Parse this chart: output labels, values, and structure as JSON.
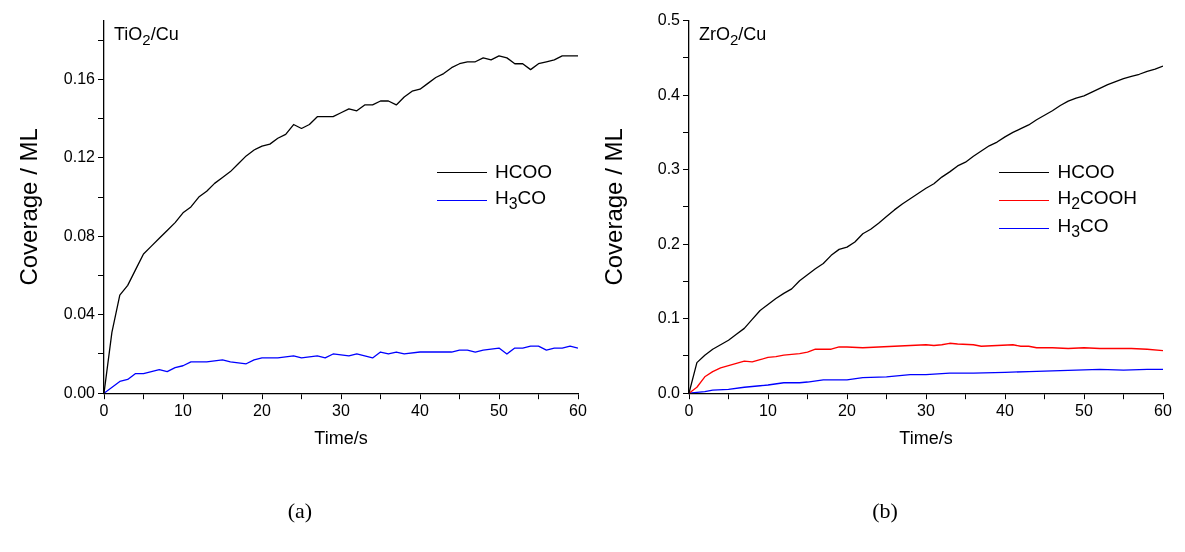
{
  "chart_data": [
    {
      "type": "line",
      "title": "TiO$_{2}$/Cu",
      "xlabel": "Time/s",
      "ylabel": "Coverage / ML",
      "annotations": [
        "(a)"
      ],
      "legend": "right",
      "grid": false,
      "xlim": [
        0,
        60
      ],
      "ylim": [
        0,
        0.19
      ],
      "xticks": [
        0,
        {
          "value": 5,
          "label": null
        },
        10,
        {
          "value": 15,
          "label": null
        },
        20,
        {
          "value": 25,
          "label": null
        },
        30,
        {
          "value": 35,
          "label": null
        },
        40,
        {
          "value": 45,
          "label": null
        },
        50,
        {
          "value": 55,
          "label": null
        },
        60
      ],
      "yticks": [
        {
          "value": 0,
          "label": "0.00"
        },
        {
          "value": 0.02,
          "label": null
        },
        0.04,
        {
          "value": 0.06,
          "label": null
        },
        0.08,
        {
          "value": 0.1,
          "label": null
        },
        0.12,
        {
          "value": 0.14,
          "label": null
        },
        0.16,
        {
          "value": 0.18,
          "label": null
        }
      ],
      "series": [
        {
          "name": "HCOO",
          "color": "#000000",
          "x": [
            0,
            1,
            2,
            3,
            4,
            5,
            6,
            7,
            8,
            9,
            10,
            11,
            12,
            13,
            14,
            15,
            16,
            17,
            18,
            19,
            20,
            21,
            22,
            23,
            24,
            25,
            26,
            27,
            28,
            29,
            30,
            31,
            32,
            33,
            34,
            35,
            36,
            37,
            38,
            39,
            40,
            41,
            42,
            43,
            44,
            45,
            46,
            47,
            48,
            49,
            50,
            51,
            52,
            53,
            54,
            55,
            56,
            57,
            58,
            59,
            60
          ],
          "values": [
            0,
            0.031,
            0.05,
            0.055,
            0.063,
            0.071,
            0.075,
            0.079,
            0.083,
            0.087,
            0.092,
            0.095,
            0.1,
            0.103,
            0.107,
            0.11,
            0.113,
            0.117,
            0.121,
            0.124,
            0.126,
            0.127,
            0.13,
            0.132,
            0.137,
            0.135,
            0.137,
            0.141,
            0.141,
            0.141,
            0.143,
            0.145,
            0.144,
            0.147,
            0.147,
            0.149,
            0.149,
            0.147,
            0.151,
            0.154,
            0.155,
            0.158,
            0.161,
            0.163,
            0.166,
            0.168,
            0.169,
            0.169,
            0.171,
            0.17,
            0.172,
            0.171,
            0.168,
            0.168,
            0.165,
            0.168,
            0.169,
            0.17,
            0.172,
            0.172,
            0.172
          ]
        },
        {
          "name": "H$_{3}$CO",
          "color": "#0000ff",
          "x": [
            0,
            2,
            3,
            4,
            5,
            6,
            7,
            8,
            9,
            10,
            11,
            12,
            13,
            15,
            16,
            18,
            19,
            20,
            22,
            24,
            25,
            27,
            28,
            29,
            31,
            32,
            34,
            35,
            36,
            37,
            38,
            40,
            42,
            44,
            45,
            46,
            47,
            48,
            50,
            51,
            52,
            53,
            54,
            55,
            56,
            57,
            58,
            59,
            60
          ],
          "values": [
            0,
            0.006,
            0.007,
            0.01,
            0.01,
            0.011,
            0.012,
            0.011,
            0.013,
            0.014,
            0.016,
            0.016,
            0.016,
            0.017,
            0.016,
            0.015,
            0.017,
            0.018,
            0.018,
            0.019,
            0.018,
            0.019,
            0.018,
            0.02,
            0.019,
            0.02,
            0.018,
            0.021,
            0.02,
            0.021,
            0.02,
            0.021,
            0.021,
            0.021,
            0.022,
            0.022,
            0.021,
            0.022,
            0.023,
            0.02,
            0.023,
            0.023,
            0.024,
            0.024,
            0.022,
            0.023,
            0.023,
            0.024,
            0.023
          ]
        }
      ]
    },
    {
      "type": "line",
      "title": "ZrO$_{2}$/Cu",
      "xlabel": "Time/s",
      "ylabel": "Coverage / ML",
      "annotations": [
        "(b)"
      ],
      "legend": "right",
      "grid": false,
      "xlim": [
        0,
        60
      ],
      "ylim": [
        0,
        0.5
      ],
      "xticks": [
        0,
        {
          "value": 5,
          "label": null
        },
        10,
        {
          "value": 15,
          "label": null
        },
        20,
        {
          "value": 25,
          "label": null
        },
        30,
        {
          "value": 35,
          "label": null
        },
        40,
        {
          "value": 45,
          "label": null
        },
        50,
        {
          "value": 55,
          "label": null
        },
        60
      ],
      "yticks": [
        {
          "value": 0,
          "label": "0.0"
        },
        {
          "value": 0.05,
          "label": null
        },
        0.1,
        {
          "value": 0.15,
          "label": null
        },
        0.2,
        {
          "value": 0.25,
          "label": null
        },
        0.3,
        {
          "value": 0.35,
          "label": null
        },
        0.4,
        {
          "value": 0.45,
          "label": null
        },
        0.5
      ],
      "series": [
        {
          "name": "HCOO",
          "color": "#000000",
          "x": [
            0,
            1,
            2,
            3,
            4,
            5,
            6,
            7,
            8,
            9,
            10,
            11,
            12,
            13,
            14,
            15,
            16,
            17,
            18,
            19,
            20,
            21,
            22,
            23,
            24,
            25,
            26,
            27,
            28,
            29,
            30,
            31,
            32,
            33,
            34,
            35,
            36,
            37,
            38,
            39,
            40,
            41,
            42,
            43,
            44,
            45,
            46,
            47,
            48,
            49,
            50,
            51,
            52,
            53,
            54,
            55,
            56,
            57,
            58,
            59,
            60
          ],
          "values": [
            0,
            0.041,
            0.051,
            0.059,
            0.065,
            0.071,
            0.079,
            0.087,
            0.099,
            0.111,
            0.119,
            0.127,
            0.134,
            0.14,
            0.151,
            0.159,
            0.167,
            0.174,
            0.185,
            0.193,
            0.196,
            0.203,
            0.214,
            0.22,
            0.228,
            0.237,
            0.246,
            0.254,
            0.261,
            0.268,
            0.275,
            0.281,
            0.29,
            0.297,
            0.305,
            0.31,
            0.318,
            0.325,
            0.332,
            0.337,
            0.344,
            0.35,
            0.355,
            0.36,
            0.367,
            0.373,
            0.379,
            0.386,
            0.392,
            0.396,
            0.399,
            0.404,
            0.409,
            0.414,
            0.418,
            0.422,
            0.425,
            0.428,
            0.432,
            0.435,
            0.439
          ]
        },
        {
          "name": "H$_{2}$COOH",
          "color": "#ff0000",
          "x": [
            0,
            1,
            2,
            3,
            4,
            5,
            6,
            7,
            8,
            9,
            10,
            11,
            12,
            13,
            14,
            15,
            16,
            17,
            18,
            19,
            20,
            22,
            24,
            26,
            28,
            30,
            31,
            32,
            33,
            34,
            36,
            37,
            39,
            41,
            42,
            43,
            44,
            46,
            48,
            50,
            52,
            54,
            56,
            58,
            60
          ],
          "values": [
            0,
            0.008,
            0.022,
            0.029,
            0.034,
            0.037,
            0.04,
            0.043,
            0.042,
            0.045,
            0.048,
            0.049,
            0.051,
            0.052,
            0.053,
            0.055,
            0.059,
            0.059,
            0.059,
            0.062,
            0.062,
            0.061,
            0.062,
            0.063,
            0.064,
            0.065,
            0.064,
            0.065,
            0.067,
            0.066,
            0.065,
            0.063,
            0.064,
            0.065,
            0.063,
            0.063,
            0.061,
            0.061,
            0.06,
            0.061,
            0.06,
            0.06,
            0.06,
            0.059,
            0.057
          ]
        },
        {
          "name": "H$_{3}$CO",
          "color": "#0000ff",
          "x": [
            0,
            2,
            3,
            5,
            7,
            9,
            10,
            12,
            14,
            15,
            17,
            20,
            22,
            25,
            28,
            30,
            33,
            36,
            40,
            43,
            46,
            49,
            52,
            55,
            58,
            60
          ],
          "values": [
            0,
            0.002,
            0.004,
            0.005,
            0.008,
            0.01,
            0.011,
            0.014,
            0.014,
            0.015,
            0.018,
            0.018,
            0.021,
            0.022,
            0.025,
            0.025,
            0.027,
            0.027,
            0.028,
            0.029,
            0.03,
            0.031,
            0.032,
            0.031,
            0.032,
            0.032
          ]
        }
      ]
    }
  ]
}
